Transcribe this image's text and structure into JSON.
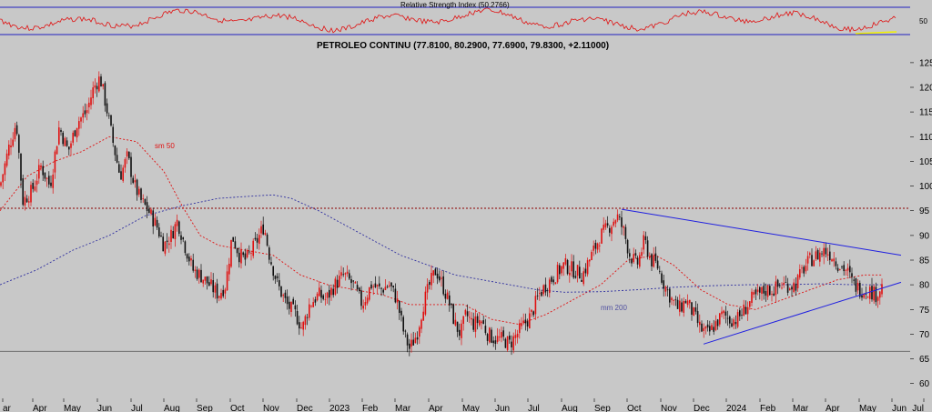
{
  "rsi_panel": {
    "label": "Relative Strength Index (50.2766)",
    "tick": "50",
    "line_color": "#e01010",
    "band_color": "#2020c0",
    "accent_color": "#f0f000"
  },
  "chart_data": {
    "type": "candlestick",
    "title": "PETROLEO CONTINU (77.8100, 80.2900, 77.6900, 79.8300, +2.11000)",
    "ylim": [
      57,
      127
    ],
    "y_ticks": [
      60,
      65,
      70,
      75,
      80,
      85,
      90,
      95,
      100,
      105,
      110,
      115,
      120,
      125
    ],
    "x_ticks": [
      "ar",
      "Apr",
      "May",
      "Jun",
      "Jul",
      "Aug",
      "Sep",
      "Oct",
      "Nov",
      "Dec",
      "2023",
      "Feb",
      "Mar",
      "Apr",
      "May",
      "Jun",
      "Jul",
      "Aug",
      "Sep",
      "Oct",
      "Nov",
      "Dec",
      "2024",
      "Feb",
      "Mar",
      "Apr",
      "May",
      "Jun",
      "Jul"
    ],
    "grid": false,
    "colors": {
      "up": "#e01010",
      "down": "#101010",
      "ma50": "#e01010",
      "ma200": "#3030a0",
      "trendline": "#2020e0"
    },
    "price_path": [
      [
        0,
        100
      ],
      [
        10,
        108
      ],
      [
        18,
        113
      ],
      [
        25,
        97
      ],
      [
        35,
        99
      ],
      [
        45,
        104
      ],
      [
        55,
        100
      ],
      [
        65,
        112
      ],
      [
        75,
        107
      ],
      [
        85,
        113
      ],
      [
        95,
        115
      ],
      [
        103,
        120
      ],
      [
        110,
        122
      ],
      [
        118,
        115
      ],
      [
        125,
        108
      ],
      [
        132,
        102
      ],
      [
        140,
        106
      ],
      [
        148,
        100
      ],
      [
        155,
        97
      ],
      [
        163,
        95
      ],
      [
        172,
        92
      ],
      [
        180,
        88
      ],
      [
        188,
        90
      ],
      [
        195,
        93
      ],
      [
        203,
        88
      ],
      [
        212,
        83
      ],
      [
        220,
        82
      ],
      [
        230,
        80
      ],
      [
        240,
        78
      ],
      [
        248,
        80
      ],
      [
        255,
        90
      ],
      [
        263,
        86
      ],
      [
        270,
        85
      ],
      [
        280,
        88
      ],
      [
        290,
        92
      ],
      [
        296,
        86
      ],
      [
        305,
        80
      ],
      [
        315,
        76
      ],
      [
        325,
        74
      ],
      [
        332,
        71
      ],
      [
        340,
        76
      ],
      [
        350,
        78
      ],
      [
        358,
        77
      ],
      [
        368,
        80
      ],
      [
        378,
        82
      ],
      [
        388,
        80
      ],
      [
        398,
        76
      ],
      [
        408,
        80
      ],
      [
        418,
        79
      ],
      [
        428,
        80
      ],
      [
        436,
        77
      ],
      [
        444,
        70
      ],
      [
        450,
        67
      ],
      [
        458,
        70
      ],
      [
        465,
        76
      ],
      [
        472,
        80
      ],
      [
        479,
        83
      ],
      [
        486,
        80
      ],
      [
        494,
        76
      ],
      [
        500,
        72
      ],
      [
        506,
        70
      ],
      [
        512,
        74
      ],
      [
        520,
        72
      ],
      [
        528,
        73
      ],
      [
        536,
        70
      ],
      [
        544,
        69
      ],
      [
        552,
        69
      ],
      [
        560,
        68
      ],
      [
        568,
        70
      ],
      [
        576,
        72
      ],
      [
        584,
        74
      ],
      [
        592,
        78
      ],
      [
        600,
        80
      ],
      [
        610,
        82
      ],
      [
        620,
        84
      ],
      [
        630,
        83
      ],
      [
        640,
        82
      ],
      [
        650,
        86
      ],
      [
        660,
        90
      ],
      [
        670,
        92
      ],
      [
        678,
        94
      ],
      [
        685,
        91
      ],
      [
        692,
        86
      ],
      [
        700,
        84
      ],
      [
        708,
        89
      ],
      [
        715,
        85
      ],
      [
        722,
        84
      ],
      [
        730,
        80
      ],
      [
        738,
        77
      ],
      [
        746,
        75
      ],
      [
        754,
        77
      ],
      [
        762,
        74
      ],
      [
        770,
        71
      ],
      [
        778,
        70
      ],
      [
        786,
        72
      ],
      [
        794,
        74
      ],
      [
        802,
        73
      ],
      [
        810,
        73
      ],
      [
        818,
        75
      ],
      [
        826,
        77
      ],
      [
        834,
        78
      ],
      [
        842,
        79
      ],
      [
        850,
        79
      ],
      [
        858,
        80
      ],
      [
        866,
        80
      ],
      [
        874,
        80
      ],
      [
        882,
        83
      ],
      [
        890,
        85
      ],
      [
        898,
        86
      ],
      [
        906,
        87
      ],
      [
        914,
        86
      ],
      [
        922,
        84
      ],
      [
        930,
        83
      ],
      [
        938,
        80
      ],
      [
        946,
        79
      ],
      [
        954,
        79
      ],
      [
        962,
        78
      ],
      [
        970,
        79.83
      ]
    ],
    "sma50_path": [
      [
        0,
        95
      ],
      [
        30,
        102
      ],
      [
        60,
        105
      ],
      [
        90,
        107
      ],
      [
        120,
        110
      ],
      [
        150,
        109
      ],
      [
        180,
        103
      ],
      [
        200,
        96
      ],
      [
        220,
        90
      ],
      [
        240,
        88
      ],
      [
        270,
        87
      ],
      [
        300,
        86
      ],
      [
        330,
        82
      ],
      [
        360,
        80
      ],
      [
        390,
        79
      ],
      [
        420,
        78
      ],
      [
        450,
        76
      ],
      [
        480,
        76
      ],
      [
        510,
        76
      ],
      [
        540,
        73
      ],
      [
        570,
        72
      ],
      [
        600,
        74
      ],
      [
        630,
        77
      ],
      [
        660,
        80
      ],
      [
        690,
        85
      ],
      [
        720,
        86
      ],
      [
        740,
        84
      ],
      [
        770,
        79
      ],
      [
        800,
        76
      ],
      [
        830,
        75
      ],
      [
        860,
        77
      ],
      [
        890,
        79
      ],
      [
        920,
        81
      ],
      [
        950,
        82
      ],
      [
        970,
        82
      ]
    ],
    "sma200_path": [
      [
        0,
        80
      ],
      [
        40,
        83
      ],
      [
        80,
        87
      ],
      [
        120,
        90
      ],
      [
        160,
        94
      ],
      [
        200,
        96
      ],
      [
        240,
        97.5
      ],
      [
        280,
        98
      ],
      [
        300,
        98.2
      ],
      [
        320,
        97.5
      ],
      [
        350,
        95
      ],
      [
        380,
        92
      ],
      [
        410,
        89
      ],
      [
        440,
        86
      ],
      [
        470,
        84
      ],
      [
        500,
        82
      ],
      [
        530,
        81
      ],
      [
        560,
        80
      ],
      [
        590,
        79
      ],
      [
        620,
        78.5
      ],
      [
        660,
        78.6
      ],
      [
        700,
        79
      ],
      [
        740,
        79.5
      ],
      [
        780,
        79.8
      ],
      [
        820,
        80
      ],
      [
        860,
        80
      ],
      [
        900,
        80.2
      ],
      [
        940,
        80
      ],
      [
        970,
        80
      ]
    ],
    "resistance_level": 95.5,
    "support_level": 66.5,
    "upper_trendline": [
      [
        683,
        95.3
      ],
      [
        990,
        86
      ]
    ],
    "lower_trendline": [
      [
        773,
        68
      ],
      [
        990,
        80.5
      ]
    ],
    "ma_labels": {
      "sma50": "sm 50",
      "sma200": "mm 200"
    }
  }
}
